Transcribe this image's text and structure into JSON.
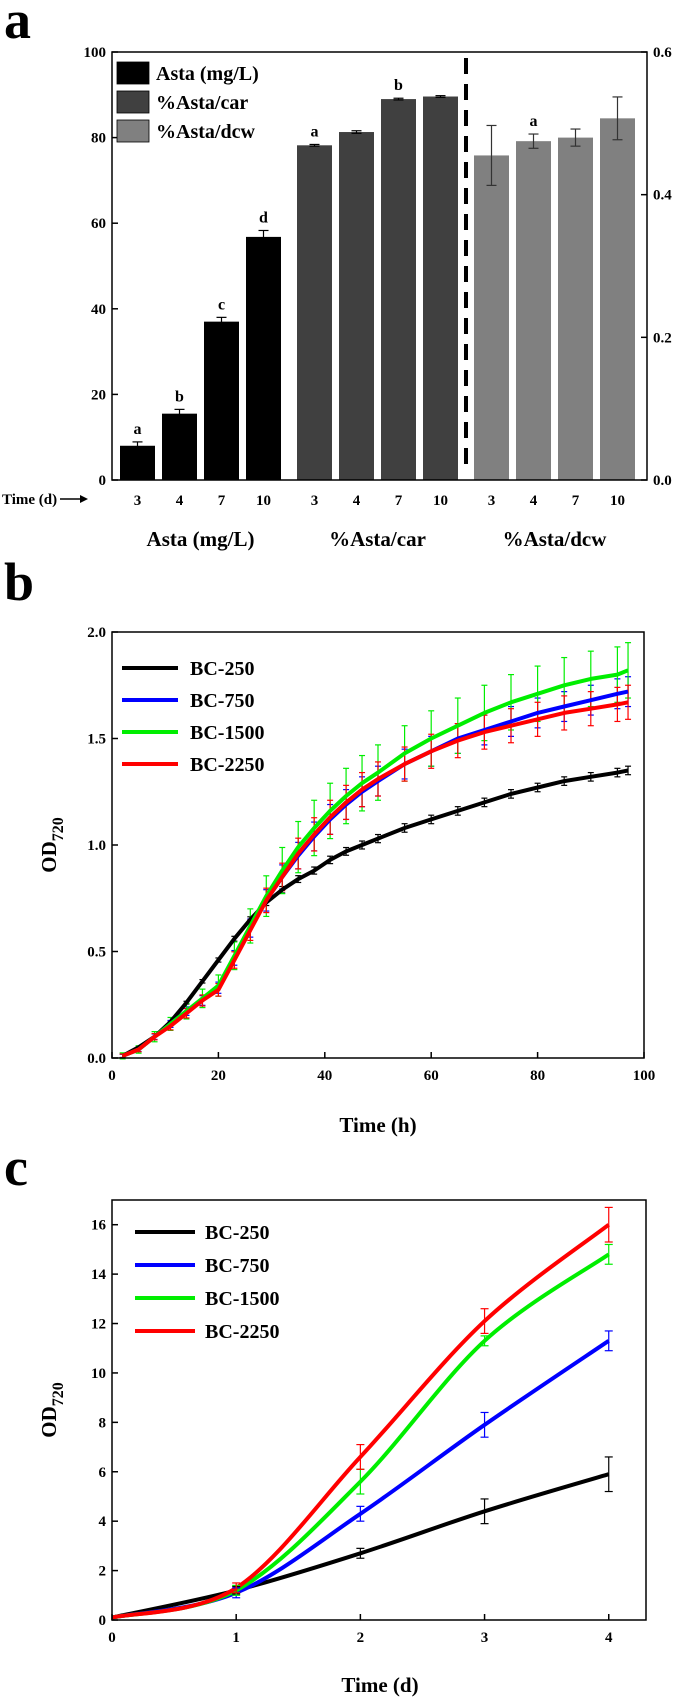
{
  "chart_data": [
    {
      "panel": "a",
      "type": "bar",
      "ylim": [
        0,
        100
      ],
      "yticks": [
        0,
        20,
        40,
        60,
        80,
        100
      ],
      "ylim_right": [
        0,
        0.6
      ],
      "yticks_right": [
        "0.0",
        "0.2",
        "0.4",
        "0.6"
      ],
      "time_axis_label": "Time (d)",
      "categories": [
        "3",
        "4",
        "7",
        "10"
      ],
      "series": [
        {
          "name": "Asta (mg/L)",
          "group_label": "Asta (mg/L)",
          "color": "#000000",
          "values": [
            8.0,
            15.5,
            37.0,
            56.8
          ],
          "errors": [
            0.9,
            1.0,
            1.0,
            1.5
          ],
          "letters": [
            "a",
            "b",
            "c",
            "d"
          ]
        },
        {
          "name": "%Asta/car",
          "group_label": "%Asta/car",
          "color": "#404040",
          "values": [
            78.2,
            81.3,
            89.0,
            89.6
          ],
          "errors": [
            0.2,
            0.3,
            0.2,
            0.2
          ],
          "letters": [
            "a",
            "",
            "b",
            ""
          ]
        },
        {
          "name": "%Asta/dcw",
          "group_label": "%Asta/dcw",
          "color": "#808080",
          "axis": "right",
          "values": [
            0.455,
            0.475,
            0.48,
            0.507
          ],
          "errors": [
            0.042,
            0.01,
            0.012,
            0.03
          ],
          "letters": [
            "",
            "a",
            "",
            ""
          ]
        }
      ]
    },
    {
      "panel": "b",
      "type": "line",
      "xlabel": "Time (h)",
      "ylabel_main": "OD",
      "ylabel_sub": "720",
      "xlim": [
        0,
        100
      ],
      "ylim": [
        0,
        2.0
      ],
      "xticks": [
        "0",
        "20",
        "40",
        "60",
        "80",
        "100"
      ],
      "yticks": [
        "0.0",
        "0.5",
        "1.0",
        "1.5",
        "2.0"
      ],
      "x": [
        2,
        5,
        8,
        11,
        14,
        17,
        20,
        23,
        26,
        29,
        32,
        35,
        38,
        41,
        44,
        47,
        50,
        55,
        60,
        65,
        70,
        75,
        80,
        85,
        90,
        95,
        97
      ],
      "series": [
        {
          "name": "BC-250",
          "color": "#000000",
          "err": 0.02,
          "values": [
            0.01,
            0.05,
            0.1,
            0.17,
            0.26,
            0.36,
            0.46,
            0.56,
            0.65,
            0.73,
            0.79,
            0.84,
            0.88,
            0.93,
            0.97,
            1.0,
            1.03,
            1.08,
            1.12,
            1.16,
            1.2,
            1.24,
            1.27,
            1.3,
            1.32,
            1.34,
            1.35
          ]
        },
        {
          "name": "BC-750",
          "color": "#0000ff",
          "err": 0.07,
          "values": [
            0.01,
            0.04,
            0.1,
            0.16,
            0.22,
            0.27,
            0.33,
            0.47,
            0.61,
            0.74,
            0.85,
            0.95,
            1.04,
            1.12,
            1.19,
            1.25,
            1.3,
            1.38,
            1.44,
            1.5,
            1.54,
            1.58,
            1.62,
            1.65,
            1.68,
            1.71,
            1.72
          ]
        },
        {
          "name": "BC-1500",
          "color": "#00ee00",
          "err": 0.13,
          "values": [
            0.01,
            0.04,
            0.1,
            0.16,
            0.22,
            0.28,
            0.34,
            0.48,
            0.62,
            0.76,
            0.88,
            0.99,
            1.08,
            1.16,
            1.23,
            1.29,
            1.34,
            1.43,
            1.5,
            1.56,
            1.62,
            1.67,
            1.71,
            1.75,
            1.78,
            1.8,
            1.82
          ]
        },
        {
          "name": "BC-2250",
          "color": "#ff0000",
          "err": 0.08,
          "values": [
            0.01,
            0.04,
            0.1,
            0.15,
            0.21,
            0.27,
            0.32,
            0.46,
            0.6,
            0.74,
            0.85,
            0.96,
            1.05,
            1.13,
            1.2,
            1.26,
            1.31,
            1.38,
            1.44,
            1.49,
            1.53,
            1.56,
            1.59,
            1.62,
            1.64,
            1.66,
            1.67
          ]
        }
      ]
    },
    {
      "panel": "c",
      "type": "line",
      "xlabel": "Time (d)",
      "ylabel_main": "OD",
      "ylabel_sub": "720",
      "xlim": [
        0,
        4.3
      ],
      "ylim": [
        0,
        17
      ],
      "xticks": [
        "0",
        "1",
        "2",
        "3",
        "4"
      ],
      "yticks": [
        "0",
        "2",
        "4",
        "6",
        "8",
        "10",
        "12",
        "14",
        "16"
      ],
      "x": [
        0,
        1,
        2,
        3,
        4
      ],
      "series": [
        {
          "name": "BC-250",
          "color": "#000000",
          "values": [
            0.1,
            1.2,
            2.7,
            4.4,
            5.9
          ],
          "errors": [
            0,
            0.15,
            0.2,
            0.5,
            0.7
          ]
        },
        {
          "name": "BC-750",
          "color": "#0000ff",
          "values": [
            0.1,
            1.1,
            4.3,
            7.9,
            11.3
          ],
          "errors": [
            0,
            0.2,
            0.3,
            0.5,
            0.4
          ]
        },
        {
          "name": "BC-1500",
          "color": "#00ee00",
          "values": [
            0.1,
            1.2,
            5.6,
            11.3,
            14.8
          ],
          "errors": [
            0,
            0.2,
            0.5,
            0.2,
            0.4
          ]
        },
        {
          "name": "BC-2250",
          "color": "#ff0000",
          "values": [
            0.1,
            1.3,
            6.6,
            12.1,
            16.0
          ],
          "errors": [
            0,
            0.2,
            0.5,
            0.5,
            0.7
          ]
        }
      ]
    }
  ]
}
